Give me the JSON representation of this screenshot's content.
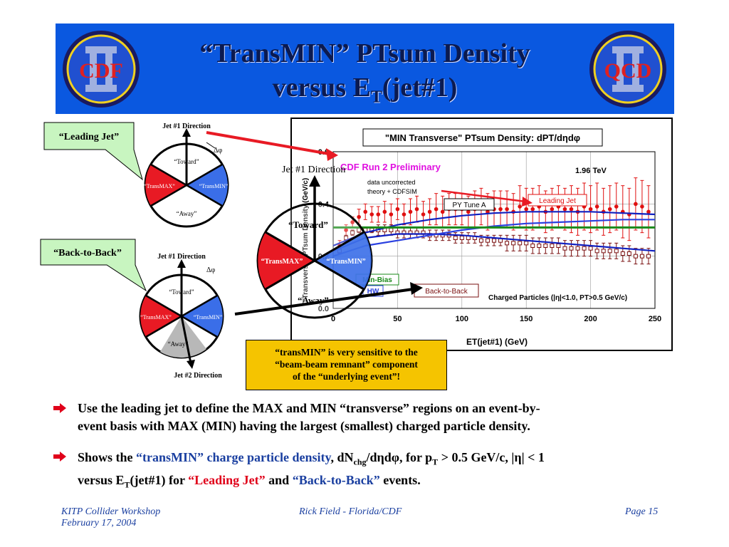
{
  "title": {
    "line1": "“TransMIN” PTsum Density",
    "line2_pre": "versus E",
    "line2_sub": "T",
    "line2_post": "(jet#1)"
  },
  "logos": {
    "left": {
      "letters": "CDF",
      "roman": "II"
    },
    "right": {
      "letters": "QCD",
      "roman": "II"
    }
  },
  "diagram_top": {
    "jet_direction": "Jet #1 Direction",
    "dphi": "Δφ",
    "toward": "“Toward”",
    "transmax": "“TransMAX”",
    "transmin": "“TransMIN”",
    "away": "“Away”"
  },
  "diagram_bottom": {
    "jet_direction": "Jet #1 Direction",
    "jet2_direction": "Jet #2 Direction",
    "dphi": "Δφ",
    "toward": "“Toward”",
    "transmax": "“TransMAX”",
    "transmin": "“TransMIN”",
    "away": "“Away”"
  },
  "diagram_large": {
    "jet_direction": "Jet #1 Direction",
    "toward": "“Toward”",
    "transmax": "“TransMAX”",
    "transmin": "“TransMIN”",
    "away": "“Away”"
  },
  "callouts": {
    "leading_jet": "“Leading Jet”",
    "back_to_back": "“Back-to-Back”"
  },
  "chart_data": {
    "type": "scatter",
    "title": "\"MIN Transverse\" PTsum Density: dPT/dηdφ",
    "xlabel": "ET(jet#1)   (GeV)",
    "ylabel": "\"Transverse\" PTsum Density (GeV/c)",
    "xlim": [
      0,
      250
    ],
    "ylim": [
      0.0,
      0.6
    ],
    "xticks": [
      0,
      50,
      100,
      150,
      200,
      250
    ],
    "yticks": [
      0.0,
      0.2,
      0.4,
      0.6
    ],
    "xtick_labels": [
      "0",
      "50",
      "100",
      "150",
      "200",
      "250"
    ],
    "ytick_labels": [
      "0.0",
      "0.2",
      "0.4",
      "0.6"
    ],
    "annotations": {
      "cdf": "CDF Run 2 Preliminary",
      "energy": "1.96 TeV",
      "data_note_1": "data uncorrected",
      "data_note_2": "theory + CDFSIM",
      "py_tune": "PY Tune A",
      "leading_jet": "Leading Jet",
      "min_bias": "Min-Bias",
      "hw": "HW",
      "back_to_back": "Back-to-Back",
      "charged": "Charged Particles (|η|<1.0, PT>0.5 GeV/c)"
    },
    "series": [
      {
        "name": "Leading Jet",
        "color": "#e01010",
        "marker": "filled-circle",
        "x": [
          5,
          10,
          15,
          20,
          25,
          30,
          35,
          40,
          45,
          50,
          55,
          60,
          65,
          70,
          75,
          80,
          85,
          90,
          95,
          100,
          105,
          110,
          115,
          120,
          125,
          130,
          135,
          140,
          145,
          150,
          155,
          160,
          165,
          170,
          175,
          180,
          185,
          190,
          195,
          200,
          205,
          210,
          215,
          220,
          225,
          230,
          235,
          240,
          245
        ],
        "y": [
          0.24,
          0.3,
          0.33,
          0.35,
          0.37,
          0.36,
          0.36,
          0.37,
          0.36,
          0.38,
          0.36,
          0.37,
          0.38,
          0.36,
          0.37,
          0.38,
          0.37,
          0.38,
          0.38,
          0.38,
          0.37,
          0.38,
          0.39,
          0.37,
          0.38,
          0.38,
          0.38,
          0.37,
          0.39,
          0.38,
          0.38,
          0.39,
          0.37,
          0.38,
          0.39,
          0.38,
          0.38,
          0.37,
          0.39,
          0.38,
          0.39,
          0.37,
          0.38,
          0.39,
          0.37,
          0.36,
          0.4,
          0.39,
          0.37
        ],
        "err": [
          0.02,
          0.02,
          0.02,
          0.03,
          0.03,
          0.03,
          0.03,
          0.04,
          0.04,
          0.04,
          0.04,
          0.05,
          0.05,
          0.05,
          0.05,
          0.06,
          0.06,
          0.06,
          0.06,
          0.06,
          0.06,
          0.07,
          0.07,
          0.07,
          0.07,
          0.07,
          0.07,
          0.07,
          0.08,
          0.08,
          0.08,
          0.08,
          0.08,
          0.08,
          0.08,
          0.08,
          0.09,
          0.09,
          0.09,
          0.09,
          0.09,
          0.09,
          0.09,
          0.09,
          0.1,
          0.1,
          0.1,
          0.1,
          0.1
        ]
      },
      {
        "name": "Back-to-Back",
        "color": "#7a1010",
        "marker": "open-square",
        "x": [
          5,
          10,
          15,
          20,
          25,
          30,
          35,
          40,
          45,
          50,
          55,
          60,
          65,
          70,
          75,
          80,
          85,
          90,
          95,
          100,
          105,
          110,
          115,
          120,
          125,
          130,
          135,
          140,
          145,
          150,
          155,
          160,
          165,
          170,
          175,
          180,
          185,
          190,
          195,
          200,
          205,
          210,
          215,
          220,
          225,
          230,
          235,
          240,
          245
        ],
        "y": [
          0.22,
          0.27,
          0.29,
          0.3,
          0.3,
          0.3,
          0.3,
          0.3,
          0.3,
          0.29,
          0.29,
          0.29,
          0.29,
          0.29,
          0.28,
          0.28,
          0.28,
          0.28,
          0.27,
          0.27,
          0.27,
          0.27,
          0.26,
          0.26,
          0.26,
          0.26,
          0.25,
          0.25,
          0.25,
          0.25,
          0.24,
          0.24,
          0.24,
          0.24,
          0.24,
          0.23,
          0.23,
          0.23,
          0.23,
          0.23,
          0.22,
          0.22,
          0.22,
          0.22,
          0.21,
          0.21,
          0.2,
          0.2,
          0.2
        ],
        "err": [
          0.01,
          0.01,
          0.01,
          0.01,
          0.01,
          0.01,
          0.02,
          0.02,
          0.02,
          0.02,
          0.02,
          0.02,
          0.02,
          0.02,
          0.02,
          0.02,
          0.02,
          0.02,
          0.02,
          0.02,
          0.02,
          0.02,
          0.02,
          0.02,
          0.02,
          0.02,
          0.03,
          0.03,
          0.03,
          0.03,
          0.03,
          0.03,
          0.03,
          0.03,
          0.03,
          0.03,
          0.03,
          0.03,
          0.03,
          0.03,
          0.03,
          0.03,
          0.03,
          0.03,
          0.03,
          0.03,
          0.03,
          0.03,
          0.03
        ]
      },
      {
        "name": "PY Tune A (Leading Jet)",
        "color": "#1020c0",
        "marker": "line",
        "x": [
          0,
          25,
          50,
          75,
          100,
          125,
          150,
          175,
          200,
          225,
          250
        ],
        "y": [
          0.24,
          0.29,
          0.32,
          0.34,
          0.355,
          0.365,
          0.37,
          0.37,
          0.37,
          0.365,
          0.36
        ]
      },
      {
        "name": "PY Tune A (Back-to-Back)",
        "color": "#1020c0",
        "marker": "line",
        "x": [
          0,
          25,
          50,
          75,
          100,
          125,
          150,
          175,
          200,
          225,
          250
        ],
        "y": [
          0.22,
          0.27,
          0.285,
          0.285,
          0.28,
          0.27,
          0.26,
          0.25,
          0.24,
          0.23,
          0.22
        ]
      },
      {
        "name": "HW",
        "color": "#2a40e0",
        "marker": "line",
        "x": [
          0,
          25,
          50,
          75,
          100,
          125,
          150,
          175,
          200,
          225,
          250
        ],
        "y": [
          0.2,
          0.24,
          0.26,
          0.28,
          0.3,
          0.315,
          0.325,
          0.33,
          0.335,
          0.34,
          0.34
        ]
      },
      {
        "name": "Min-Bias",
        "color": "#1a8a1a",
        "marker": "line",
        "x": [
          0,
          250
        ],
        "y": [
          0.31,
          0.31
        ]
      }
    ]
  },
  "note": {
    "line1": "“transMIN” is very sensitive to the",
    "line2": "“beam-beam remnant” component",
    "line3": "of the “underlying event”!"
  },
  "bullets": {
    "b1_line1": "Use the leading jet to define the MAX and MIN “transverse” regions on an event-by-",
    "b1_line2": "event basis with MAX (MIN) having the largest (smallest) charged particle density.",
    "b2_pre": "Shows the ",
    "b2_highlight": "“transMIN” charge particle density",
    "b2_mid": ", dN",
    "b2_sub": "chg",
    "b2_mid2": "/dηdφ, for p",
    "b2_sub2": "T",
    "b2_post": " > 0.5 GeV/c, |η| < 1",
    "b2_line2_pre": "versus E",
    "b2_line2_sub": "T",
    "b2_line2_mid": "(jet#1) for ",
    "b2_leading": "“Leading Jet”",
    "b2_and": " and ",
    "b2_b2b": "“Back-to-Back”",
    "b2_end": " events."
  },
  "footer": {
    "left_line1": "KITP Collider Workshop",
    "left_line2": "February 17, 2004",
    "center": "Rick Field - Florida/CDF",
    "right": "Page 15"
  },
  "colors": {
    "title_bar": "#0a58e0",
    "transmax_red": "#e81a24",
    "transmin_blue": "#3a6ee8",
    "callout_green": "#c8f5c0",
    "note_yellow": "#f5c400",
    "bullet_arrow": "#e0001a",
    "highlight_blue": "#1a3fa0",
    "highlight_red": "#e0001a"
  }
}
